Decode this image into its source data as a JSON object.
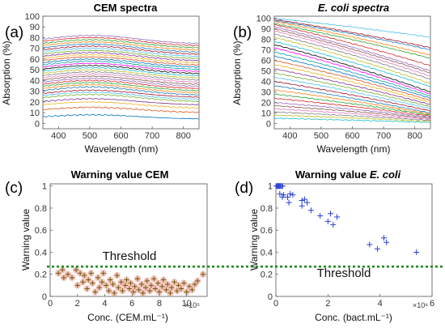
{
  "panels": {
    "a": "(a)",
    "b": "(b)",
    "c": "(c)",
    "d": "(d)"
  },
  "chart_data": [
    {
      "id": "a",
      "type": "line",
      "title": "CEM spectra",
      "xlabel": "Wavelength (nm)",
      "ylabel": "Absorption (%)",
      "xlim": [
        350,
        850
      ],
      "ylim": [
        -5,
        100
      ],
      "xticks": [
        400,
        500,
        600,
        700,
        800
      ],
      "yticks": [
        0,
        10,
        20,
        30,
        40,
        50,
        60,
        70,
        80,
        90,
        100
      ],
      "grid": false,
      "curve_model": "y(λ) = base + bump·exp(-((λ-505)/210)^2), 32 spectra",
      "series_base": [
        4,
        10,
        14,
        17,
        20,
        22,
        24,
        26,
        28,
        30,
        32,
        34,
        36,
        38,
        40,
        42,
        44,
        46,
        48,
        50,
        52,
        54,
        56,
        58,
        60,
        62,
        64,
        66,
        68,
        70,
        72,
        74
      ],
      "series_bump": [
        4,
        5,
        6,
        6,
        7,
        7,
        7,
        8,
        8,
        8,
        8,
        8,
        8,
        8,
        8,
        8,
        8,
        8,
        8,
        8,
        8,
        8,
        8,
        8,
        8,
        8,
        8,
        8,
        8,
        8,
        8,
        8
      ]
    },
    {
      "id": "b",
      "type": "line",
      "title": "E. coli spectra",
      "xlabel": "Wavelength (nm)",
      "ylabel": "Absorption (%)",
      "xlim": [
        350,
        850
      ],
      "ylim": [
        -5,
        102
      ],
      "xticks": [
        400,
        500,
        600,
        700,
        800
      ],
      "yticks": [
        0,
        10,
        20,
        30,
        40,
        50,
        60,
        70,
        80,
        90,
        100
      ],
      "grid": false,
      "curve_model": "y(λ) = start at 350 nm, linear decay to end at 850 nm with slight sag",
      "series_start": [
        100,
        99,
        98,
        97,
        95,
        94,
        92,
        90,
        88,
        85,
        82,
        78,
        75,
        72,
        68,
        64,
        60,
        56,
        52,
        48,
        44,
        40,
        36,
        32,
        28,
        24,
        20,
        17,
        14,
        11,
        8,
        5
      ],
      "series_end": [
        82,
        72,
        70,
        65,
        62,
        55,
        50,
        48,
        45,
        42,
        38,
        35,
        30,
        28,
        26,
        24,
        22,
        20,
        18,
        16,
        14,
        12,
        10,
        9,
        8,
        7,
        6,
        5,
        4,
        3,
        2,
        1
      ]
    },
    {
      "id": "c",
      "type": "scatter",
      "title": "Warning value CEM",
      "xlabel": "Conc. (CEM.mL⁻¹)",
      "ylabel": "Warning value",
      "x_multiplier": "×10⁵",
      "xlim": [
        0,
        11.5
      ],
      "ylim": [
        0,
        1.02
      ],
      "xticks": [
        0,
        2,
        4,
        6,
        8,
        10
      ],
      "yticks": [
        0,
        0.2,
        0.4,
        0.6,
        0.8,
        1
      ],
      "threshold": 0.27,
      "threshold_label": "Threshold",
      "points": [
        [
          0.6,
          0.21
        ],
        [
          0.9,
          0.24
        ],
        [
          1.0,
          0.17
        ],
        [
          1.3,
          0.2
        ],
        [
          1.6,
          0.17
        ],
        [
          1.9,
          0.24
        ],
        [
          2.0,
          0.1
        ],
        [
          2.2,
          0.21
        ],
        [
          2.4,
          0.13
        ],
        [
          2.5,
          0.19
        ],
        [
          2.7,
          0.07
        ],
        [
          2.8,
          0.15
        ],
        [
          3.0,
          0.21
        ],
        [
          3.1,
          0.12
        ],
        [
          3.3,
          0.04
        ],
        [
          3.5,
          0.17
        ],
        [
          3.6,
          0.08
        ],
        [
          3.8,
          0.13
        ],
        [
          3.9,
          0.21
        ],
        [
          4.1,
          0.1
        ],
        [
          4.3,
          0.05
        ],
        [
          4.4,
          0.15
        ],
        [
          4.6,
          0.11
        ],
        [
          4.7,
          0.03
        ],
        [
          4.9,
          0.19
        ],
        [
          5.0,
          0.08
        ],
        [
          5.2,
          0.13
        ],
        [
          5.3,
          0.05
        ],
        [
          5.5,
          0.1
        ],
        [
          5.6,
          0.15
        ],
        [
          5.8,
          0.07
        ],
        [
          5.9,
          0.12
        ],
        [
          6.1,
          0.04
        ],
        [
          6.2,
          0.09
        ],
        [
          6.4,
          0.16
        ],
        [
          6.5,
          0.06
        ],
        [
          6.7,
          0.11
        ],
        [
          6.8,
          0.03
        ],
        [
          7.0,
          0.08
        ],
        [
          7.1,
          0.14
        ],
        [
          7.3,
          0.05
        ],
        [
          7.4,
          0.1
        ],
        [
          7.6,
          0.16
        ],
        [
          7.7,
          0.07
        ],
        [
          7.9,
          0.12
        ],
        [
          8.0,
          0.04
        ],
        [
          8.2,
          0.09
        ],
        [
          8.3,
          0.15
        ],
        [
          8.5,
          0.06
        ],
        [
          8.6,
          0.11
        ],
        [
          8.8,
          0.03
        ],
        [
          8.9,
          0.08
        ],
        [
          9.1,
          0.13
        ],
        [
          9.3,
          0.05
        ],
        [
          9.4,
          0.1
        ],
        [
          9.6,
          0.07
        ],
        [
          9.8,
          0.12
        ],
        [
          10.0,
          0.04
        ],
        [
          10.2,
          0.09
        ],
        [
          10.4,
          0.06
        ],
        [
          10.6,
          0.11
        ],
        [
          10.8,
          0.14
        ],
        [
          11.2,
          0.2
        ]
      ]
    },
    {
      "id": "d",
      "type": "scatter",
      "title": "Warning value E. coli",
      "xlabel": "Conc. (bact.mL⁻¹)",
      "ylabel": "Warning value",
      "x_multiplier": "×10⁸",
      "xlim": [
        0,
        6
      ],
      "ylim": [
        0,
        1.02
      ],
      "xticks": [
        0,
        2,
        4,
        6
      ],
      "yticks": [
        0,
        0.2,
        0.4,
        0.6,
        0.8,
        1
      ],
      "threshold": 0.27,
      "threshold_label": "Threshold",
      "points": [
        [
          0.02,
          1.0
        ],
        [
          0.05,
          1.0
        ],
        [
          0.08,
          1.0
        ],
        [
          0.1,
          1.0
        ],
        [
          0.12,
          1.0
        ],
        [
          0.15,
          1.0
        ],
        [
          0.18,
          1.0
        ],
        [
          0.22,
          1.0
        ],
        [
          0.26,
          1.0
        ],
        [
          0.15,
          0.93
        ],
        [
          0.25,
          0.9
        ],
        [
          0.3,
          0.92
        ],
        [
          0.45,
          0.9
        ],
        [
          0.55,
          0.93
        ],
        [
          0.5,
          0.85
        ],
        [
          0.65,
          0.92
        ],
        [
          1.0,
          0.87
        ],
        [
          1.1,
          0.88
        ],
        [
          1.2,
          0.85
        ],
        [
          1.0,
          0.82
        ],
        [
          1.35,
          0.78
        ],
        [
          1.7,
          0.73
        ],
        [
          2.0,
          0.68
        ],
        [
          2.1,
          0.75
        ],
        [
          2.2,
          0.65
        ],
        [
          2.35,
          0.72
        ],
        [
          3.6,
          0.47
        ],
        [
          3.9,
          0.43
        ],
        [
          4.15,
          0.53
        ],
        [
          4.25,
          0.49
        ],
        [
          5.4,
          0.4
        ]
      ]
    }
  ]
}
